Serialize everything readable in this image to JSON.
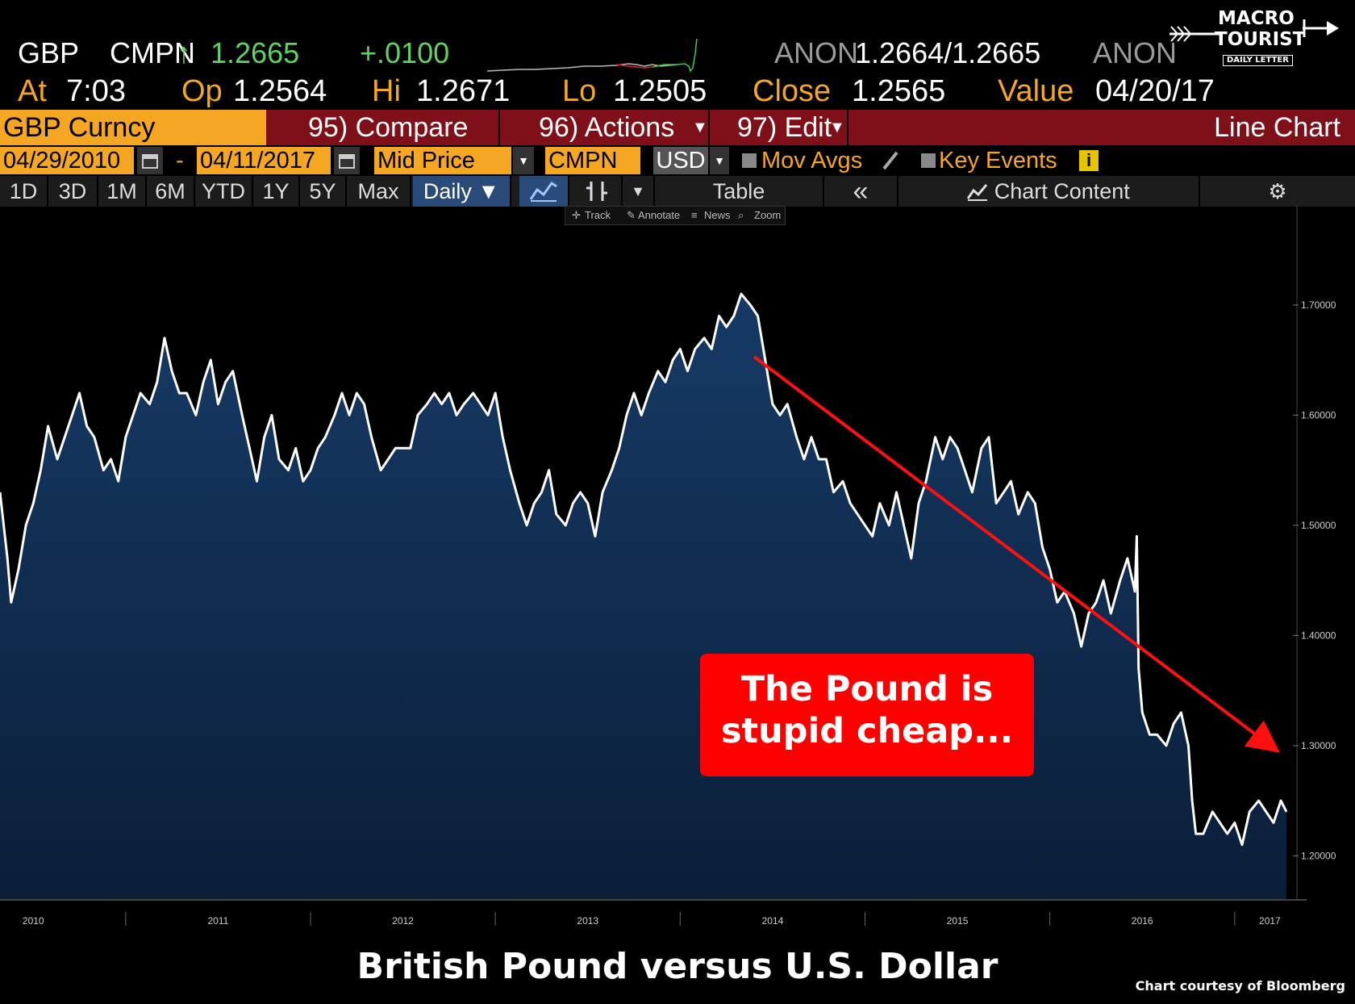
{
  "quote": {
    "ticker": "GBP",
    "source": "CMPN",
    "arrow": "↑",
    "last": "1.2665",
    "change": "+.0100",
    "bid_source": "ANON",
    "bid_ask": "1.2664/1.2665",
    "ask_source": "ANON",
    "time_label": "At",
    "time": "7:03",
    "open_label": "Op",
    "open": "1.2564",
    "high_label": "Hi",
    "high": "1.2671",
    "low_label": "Lo",
    "low": "1.2505",
    "close_label": "Close",
    "close": "1.2565",
    "value_label": "Value",
    "value_date": "04/20/17"
  },
  "logo": {
    "line1": "MACRO",
    "line2": "TOURIST",
    "line3": "DAILY LETTER"
  },
  "toolbar": {
    "security": "GBP Curncy",
    "compare": "95) Compare",
    "actions": "96) Actions",
    "edit": "97) Edit",
    "chart_type": "Line Chart"
  },
  "daterow": {
    "start_date": "04/29/2010",
    "dash": "-",
    "end_date": "04/11/2017",
    "price_field": "Mid Price",
    "pricing_source": "CMPN",
    "currency": "USD",
    "mov_avgs": "Mov Avgs",
    "key_events": "Key Events",
    "info": "i"
  },
  "periods": [
    "1D",
    "3D",
    "1M",
    "6M",
    "YTD",
    "1Y",
    "5Y",
    "Max"
  ],
  "frequency": "Daily ▼",
  "table_label": "Table",
  "collapse": "«",
  "chart_content": "Chart Content",
  "mini_toolbar": {
    "track": "Track",
    "annotate": "Annotate",
    "news": "News",
    "zoom": "Zoom"
  },
  "colors": {
    "accent_orange": "#f5a623",
    "bar_red": "#7f1019",
    "up_green": "#5fd35f",
    "area_fill": "#0f2744",
    "callout_red": "#fe0000",
    "arrow_red": "#ff1010"
  },
  "callout": {
    "line1": "The Pound is",
    "line2": "stupid cheap..."
  },
  "caption": "British Pound versus U.S. Dollar",
  "credit": "Chart courtesy of Bloomberg",
  "chart_data": {
    "type": "area",
    "y_tick_labels": [
      "1.70000",
      "1.60000",
      "1.50000",
      "1.40000",
      "1.30000",
      "1.20000"
    ],
    "y_ticks": [
      1.7,
      1.6,
      1.5,
      1.4,
      1.3,
      1.2
    ],
    "ylim": [
      1.16,
      1.79
    ],
    "xlim": [
      2010.32,
      2017.28
    ],
    "x_tick_labels": [
      "2010",
      "2011",
      "2012",
      "2013",
      "2014",
      "2015",
      "2016",
      "2017"
    ],
    "x_label_positions": [
      2010.5,
      2011.5,
      2012.5,
      2013.5,
      2014.5,
      2015.5,
      2016.5,
      2017.19
    ],
    "x_year_dividers": [
      2011,
      2012,
      2013,
      2014,
      2015,
      2016,
      2017
    ],
    "grid": false,
    "series": [
      {
        "x": [
          2010.32,
          2010.36,
          2010.38,
          2010.42,
          2010.46,
          2010.5,
          2010.54,
          2010.58,
          2010.63,
          2010.67,
          2010.71,
          2010.75,
          2010.79,
          2010.83,
          2010.88,
          2010.92,
          2010.96,
          2011.0,
          2011.04,
          2011.08,
          2011.13,
          2011.17,
          2011.21,
          2011.25,
          2011.29,
          2011.33,
          2011.38,
          2011.42,
          2011.46,
          2011.5,
          2011.54,
          2011.58,
          2011.63,
          2011.67,
          2011.71,
          2011.75,
          2011.79,
          2011.83,
          2011.88,
          2011.92,
          2011.96,
          2012.0,
          2012.04,
          2012.08,
          2012.13,
          2012.17,
          2012.21,
          2012.25,
          2012.29,
          2012.33,
          2012.38,
          2012.42,
          2012.46,
          2012.5,
          2012.54,
          2012.58,
          2012.63,
          2012.67,
          2012.71,
          2012.75,
          2012.79,
          2012.83,
          2012.88,
          2012.92,
          2012.96,
          2013.0,
          2013.04,
          2013.08,
          2013.13,
          2013.17,
          2013.21,
          2013.25,
          2013.29,
          2013.33,
          2013.38,
          2013.42,
          2013.46,
          2013.5,
          2013.54,
          2013.58,
          2013.63,
          2013.67,
          2013.71,
          2013.75,
          2013.79,
          2013.83,
          2013.88,
          2013.92,
          2013.96,
          2014.0,
          2014.04,
          2014.08,
          2014.13,
          2014.17,
          2014.21,
          2014.25,
          2014.29,
          2014.33,
          2014.38,
          2014.42,
          2014.46,
          2014.5,
          2014.54,
          2014.58,
          2014.63,
          2014.67,
          2014.71,
          2014.75,
          2014.79,
          2014.83,
          2014.88,
          2014.92,
          2014.96,
          2015.0,
          2015.04,
          2015.08,
          2015.13,
          2015.17,
          2015.21,
          2015.25,
          2015.29,
          2015.33,
          2015.38,
          2015.42,
          2015.46,
          2015.5,
          2015.54,
          2015.58,
          2015.63,
          2015.67,
          2015.71,
          2015.75,
          2015.79,
          2015.83,
          2015.88,
          2015.92,
          2015.96,
          2016.0,
          2016.04,
          2016.08,
          2016.13,
          2016.17,
          2016.21,
          2016.25,
          2016.29,
          2016.33,
          2016.38,
          2016.42,
          2016.46,
          2016.47,
          2016.48,
          2016.5,
          2016.54,
          2016.58,
          2016.63,
          2016.67,
          2016.71,
          2016.75,
          2016.77,
          2016.79,
          2016.83,
          2016.88,
          2016.92,
          2016.96,
          2017.0,
          2017.04,
          2017.08,
          2017.13,
          2017.17,
          2017.21,
          2017.25,
          2017.28
        ],
        "values": [
          1.53,
          1.47,
          1.43,
          1.46,
          1.5,
          1.52,
          1.55,
          1.59,
          1.56,
          1.58,
          1.6,
          1.62,
          1.59,
          1.58,
          1.55,
          1.56,
          1.54,
          1.58,
          1.6,
          1.62,
          1.61,
          1.63,
          1.67,
          1.64,
          1.62,
          1.62,
          1.6,
          1.63,
          1.65,
          1.61,
          1.63,
          1.64,
          1.6,
          1.57,
          1.54,
          1.58,
          1.6,
          1.56,
          1.55,
          1.57,
          1.54,
          1.55,
          1.57,
          1.58,
          1.6,
          1.62,
          1.6,
          1.62,
          1.61,
          1.58,
          1.55,
          1.56,
          1.57,
          1.57,
          1.57,
          1.6,
          1.61,
          1.62,
          1.61,
          1.62,
          1.6,
          1.61,
          1.62,
          1.61,
          1.6,
          1.62,
          1.58,
          1.55,
          1.52,
          1.5,
          1.52,
          1.53,
          1.55,
          1.51,
          1.5,
          1.52,
          1.53,
          1.52,
          1.49,
          1.53,
          1.55,
          1.57,
          1.6,
          1.62,
          1.6,
          1.62,
          1.64,
          1.63,
          1.65,
          1.66,
          1.64,
          1.66,
          1.67,
          1.66,
          1.69,
          1.68,
          1.69,
          1.71,
          1.7,
          1.69,
          1.65,
          1.61,
          1.6,
          1.61,
          1.58,
          1.56,
          1.58,
          1.56,
          1.56,
          1.53,
          1.54,
          1.52,
          1.51,
          1.5,
          1.49,
          1.52,
          1.5,
          1.53,
          1.5,
          1.47,
          1.52,
          1.54,
          1.58,
          1.56,
          1.58,
          1.57,
          1.55,
          1.53,
          1.57,
          1.58,
          1.52,
          1.53,
          1.54,
          1.51,
          1.53,
          1.52,
          1.48,
          1.46,
          1.43,
          1.44,
          1.42,
          1.39,
          1.42,
          1.43,
          1.45,
          1.42,
          1.45,
          1.47,
          1.44,
          1.49,
          1.37,
          1.33,
          1.31,
          1.31,
          1.3,
          1.32,
          1.33,
          1.3,
          1.25,
          1.22,
          1.22,
          1.24,
          1.23,
          1.22,
          1.23,
          1.21,
          1.24,
          1.25,
          1.24,
          1.23,
          1.25,
          1.24
        ]
      }
    ]
  }
}
